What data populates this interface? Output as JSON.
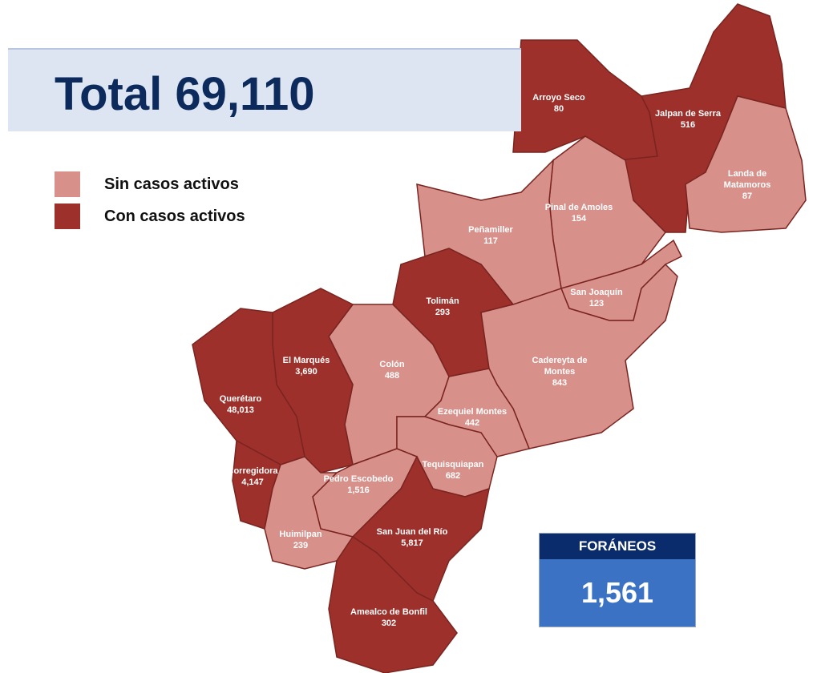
{
  "banner": {
    "title": "Total 69,110"
  },
  "legend": [
    {
      "label": "Sin casos activos",
      "color": "#d8908a"
    },
    {
      "label": "Con casos activos",
      "color": "#9e302b"
    }
  ],
  "municipalities": [
    {
      "name": "Arroyo Seco",
      "value": "80",
      "active": true
    },
    {
      "name": "Jalpan de Serra",
      "value": "516",
      "active": true
    },
    {
      "name": "Landa de Matamoros",
      "value": "87",
      "active": false
    },
    {
      "name": "Pinal de Amoles",
      "value": "154",
      "active": false
    },
    {
      "name": "Peñamiller",
      "value": "117",
      "active": false
    },
    {
      "name": "San Joaquín",
      "value": "123",
      "active": false
    },
    {
      "name": "Tolimán",
      "value": "293",
      "active": true
    },
    {
      "name": "Cadereyta de Montes",
      "value": "843",
      "active": false
    },
    {
      "name": "Colón",
      "value": "488",
      "active": false
    },
    {
      "name": "El Marqués",
      "value": "3,690",
      "active": true
    },
    {
      "name": "Querétaro",
      "value": "48,013",
      "active": true
    },
    {
      "name": "Ezequiel Montes",
      "value": "442",
      "active": false
    },
    {
      "name": "Tequisquiapan",
      "value": "682",
      "active": false
    },
    {
      "name": "Pedro Escobedo",
      "value": "1,516",
      "active": false
    },
    {
      "name": "Corregidora",
      "value": "4,147",
      "active": true
    },
    {
      "name": "Huimilpan",
      "value": "239",
      "active": false
    },
    {
      "name": "San Juan del Río",
      "value": "5,817",
      "active": true
    },
    {
      "name": "Amealco de Bonfil",
      "value": "302",
      "active": true
    }
  ],
  "foraneos": {
    "title": "FORÁNEOS",
    "value": "1,561"
  }
}
